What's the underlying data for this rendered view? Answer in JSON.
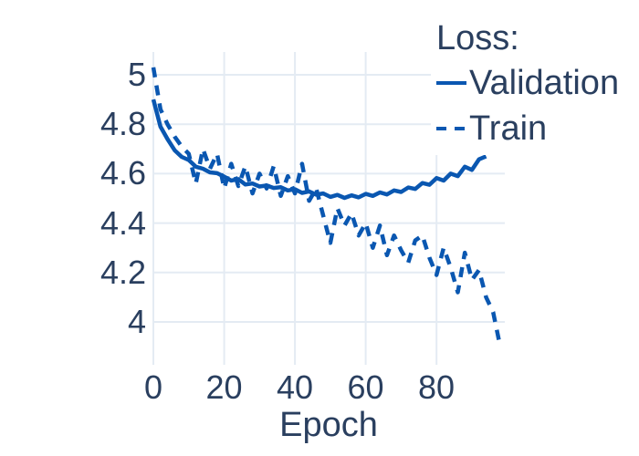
{
  "figure": {
    "background_color": "#ffffff",
    "text_color": "#2a3f5f",
    "grid_color": "#e4ebf3",
    "accent_color": "#0a57b1"
  },
  "chart_data": {
    "type": "line",
    "title": "",
    "xlabel": "Epoch",
    "ylabel": "",
    "legend_title": "Loss:",
    "legend_position": "top-right",
    "grid": true,
    "xlim": [
      -0.5,
      99.5
    ],
    "ylim": [
      3.83,
      5.09
    ],
    "xticks": [
      0,
      20,
      40,
      60,
      80
    ],
    "xtick_labels": [
      "0",
      "20",
      "40",
      "60",
      "80"
    ],
    "yticks": [
      5,
      4.8,
      4.6,
      4.4,
      4.2,
      4
    ],
    "ytick_labels": [
      "5",
      "4.8",
      "4.6",
      "4.4",
      "4.2",
      "4"
    ],
    "series": [
      {
        "name": "Validation",
        "style": "solid",
        "color": "#0a57b1",
        "x": [
          0,
          2,
          4,
          6,
          8,
          10,
          12,
          14,
          16,
          18,
          20,
          22,
          24,
          26,
          28,
          30,
          32,
          34,
          36,
          38,
          40,
          42,
          44,
          46,
          48,
          50,
          52,
          54,
          56,
          58,
          60,
          62,
          64,
          66,
          68,
          70,
          72,
          74,
          76,
          78,
          80,
          82,
          84,
          86,
          88,
          90,
          92,
          94
        ],
        "y": [
          4.9,
          4.79,
          4.74,
          4.695,
          4.668,
          4.655,
          4.628,
          4.62,
          4.605,
          4.602,
          4.588,
          4.572,
          4.578,
          4.556,
          4.56,
          4.548,
          4.552,
          4.542,
          4.545,
          4.532,
          4.537,
          4.522,
          4.528,
          4.515,
          4.52,
          4.506,
          4.514,
          4.502,
          4.512,
          4.504,
          4.518,
          4.51,
          4.524,
          4.516,
          4.532,
          4.526,
          4.544,
          4.538,
          4.562,
          4.555,
          4.582,
          4.572,
          4.6,
          4.59,
          4.628,
          4.615,
          4.658,
          4.67
        ]
      },
      {
        "name": "Train",
        "style": "dashed",
        "color": "#0a57b1",
        "x": [
          0,
          2,
          4,
          6,
          8,
          10,
          12,
          14,
          16,
          18,
          20,
          22,
          24,
          26,
          28,
          30,
          32,
          34,
          36,
          38,
          40,
          42,
          44,
          46,
          48,
          50,
          52,
          54,
          56,
          58,
          60,
          62,
          64,
          66,
          68,
          70,
          72,
          74,
          76,
          78,
          80,
          82,
          84,
          86,
          88,
          90,
          92,
          94,
          96,
          98
        ],
        "y": [
          5.03,
          4.86,
          4.8,
          4.75,
          4.71,
          4.68,
          4.56,
          4.7,
          4.62,
          4.68,
          4.54,
          4.64,
          4.55,
          4.63,
          4.52,
          4.6,
          4.54,
          4.63,
          4.51,
          4.59,
          4.52,
          4.64,
          4.49,
          4.54,
          4.43,
          4.32,
          4.46,
          4.39,
          4.44,
          4.35,
          4.4,
          4.3,
          4.39,
          4.27,
          4.35,
          4.29,
          4.24,
          4.33,
          4.35,
          4.26,
          4.19,
          4.3,
          4.22,
          4.12,
          4.28,
          4.17,
          4.21,
          4.1,
          4.04,
          3.9
        ]
      }
    ]
  }
}
